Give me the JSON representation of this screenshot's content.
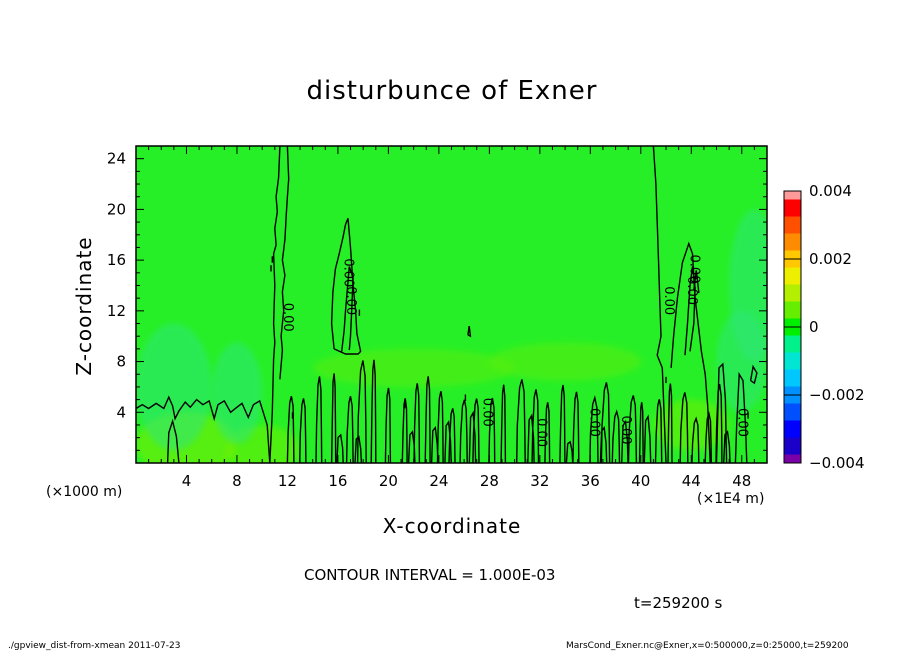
{
  "chart_data": {
    "type": "heatmap",
    "title": "disturbunce of Exner",
    "xlabel": "X-coordinate",
    "ylabel": "Z-coordinate",
    "x_unit_label": "(×1000 m)",
    "x_scale_label": "(×1E4 m)",
    "xlim": [
      0,
      50
    ],
    "ylim": [
      0,
      25
    ],
    "x_ticks": [
      4,
      8,
      12,
      16,
      20,
      24,
      28,
      32,
      36,
      40,
      44,
      48
    ],
    "y_ticks": [
      4,
      8,
      12,
      16,
      20,
      24
    ],
    "colorbar": {
      "levels": [
        -0.004,
        -0.0035,
        -0.003,
        -0.0025,
        -0.002,
        -0.0015,
        -0.001,
        -0.0005,
        0,
        0.0005,
        0.001,
        0.0015,
        0.002,
        0.0025,
        0.003,
        0.0035,
        0.004
      ],
      "colors": [
        "#7a00a8",
        "#1a00c8",
        "#0000ff",
        "#0050ff",
        "#0090ff",
        "#00c8ff",
        "#00e6d2",
        "#00f08c",
        "#00ee00",
        "#66ee00",
        "#b4ee00",
        "#eeee00",
        "#ffc800",
        "#ff8c00",
        "#ff5000",
        "#ff0000",
        "#ff9a9a"
      ],
      "tick_labels": [
        "0.004",
        "0.002",
        "0",
        "−0.002",
        "−0.004"
      ],
      "tick_values": [
        0.004,
        0.002,
        0,
        -0.002,
        -0.004
      ]
    },
    "background_color": "#27ef27",
    "contour_labels": [
      "0.00",
      "0.00",
      "0.00",
      "0.00",
      "0.00",
      "0.00",
      "0.00",
      "0.00",
      "0.00",
      "0.00",
      "0.00"
    ],
    "contour_interval": "CONTOUR INTERVAL = 1.000E-03",
    "time_label": "t=259200 s",
    "footer_left": "./gpview_dist-from-xmean  2011-07-23",
    "footer_right": "MarsCond_Exner.nc@Exner,x=0:500000,z=0:25000,t=259200"
  }
}
